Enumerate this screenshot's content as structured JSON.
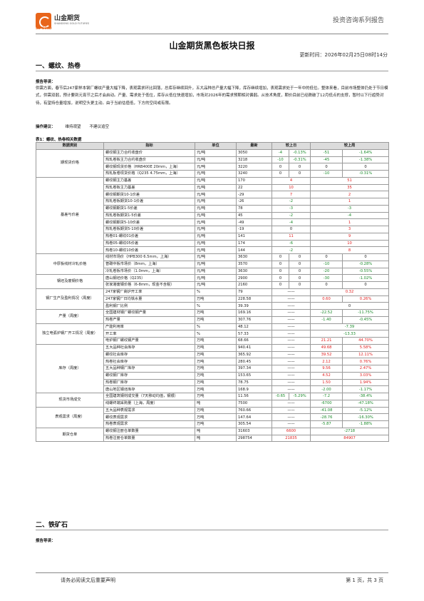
{
  "header": {
    "logo_cn": "山金期货",
    "logo_en": "SHANDONG GOLD FUTURES",
    "logo_sub": "SD GOLD",
    "right_text": "投资咨询系列报告",
    "logo_color": "#e8651b"
  },
  "title": "山金期货黑色板块日报",
  "update_time": "更新时间：2026年02月25日08时14分",
  "section1": {
    "heading": "一、螺纹、热卷",
    "guide_label": "报告导读：",
    "paragraph": "供需方面，春节后247家样本钢厂螺纹产量大幅下降，表观需求环比回落，总库存继续回升，五大品种总产量大幅下降，库存继续增加，表观需求处于一年中的低位。整体来看，目前市场整体仍处于节日模式，供需双弱，预计要到元宵节之后才会启动。产量、需求处于低位，库存从低位快速增加，市场对2026年的需求预期相对偏弱。从技术角度，期价目前已经跌破了12月低点的支撑，暂时以下行趋势对待，有望持仓量增加，说明空头更主动。由于当前估值低，下方的空间或有限。",
    "advice_label": "操作建议：",
    "advice_value": "维持观望",
    "advice_note": "不建议追空"
  },
  "table": {
    "caption": "表1：螺纹、热卷相关数据",
    "headers": [
      "数据类别",
      "指标",
      "单位",
      "最新",
      "较上日",
      "较上周"
    ],
    "rows": [
      {
        "cat": "期现货价格",
        "span": 4,
        "ind": "螺纹钢主力合约收盘价",
        "unit": "元/吨",
        "latest": "3050",
        "d1": "-4",
        "d1p": "-0.13%",
        "w1": "-51",
        "w1p": "-1.64%",
        "split": true,
        "c1": "grn",
        "c2": "grn"
      },
      {
        "ind": "热轧卷板主力合约收盘价",
        "unit": "元/吨",
        "latest": "3218",
        "d1": "-10",
        "d1p": "-0.31%",
        "w1": "-45",
        "w1p": "-1.38%",
        "split": true,
        "c1": "grn",
        "c2": "grn"
      },
      {
        "ind": "螺纹钢现货价格（HRB400E 20mm，上海）",
        "unit": "元/吨",
        "latest": "3220",
        "d1": "0",
        "d1p": "0",
        "w1": "0",
        "w1p": "0",
        "split": true,
        "c1": "",
        "c2": ""
      },
      {
        "ind": "热轧板卷现货价格（Q235 4.75mm，上海）",
        "unit": "元/吨",
        "latest": "3240",
        "d1": "0",
        "d1p": "0",
        "w1": "-10",
        "w1p": "-0.31%",
        "split": true,
        "c1": "",
        "c2": "grn"
      },
      {
        "cat": "基差与价差",
        "span": 11,
        "ind": "螺纹钢主力基差",
        "unit": "元/吨",
        "latest": "170",
        "d1": "4",
        "w1": "51",
        "split": false,
        "c1": "red",
        "c2": "red"
      },
      {
        "ind": "热轧卷板主力基差",
        "unit": "元/吨",
        "latest": "22",
        "d1": "10",
        "w1": "35",
        "split": false,
        "c1": "red",
        "c2": "red"
      },
      {
        "ind": "螺纹钢期货10-1价差",
        "unit": "元/吨",
        "latest": "-29",
        "d1": "7",
        "w1": "2",
        "split": false,
        "c1": "red",
        "c2": "red"
      },
      {
        "ind": "热轧卷板期货10-1价差",
        "unit": "元/吨",
        "latest": "-26",
        "d1": "-2",
        "w1": "1",
        "split": false,
        "c1": "grn",
        "c2": "red"
      },
      {
        "ind": "螺纹钢期货1-5价差",
        "unit": "元/吨",
        "latest": "78",
        "d1": "-3",
        "w1": "-3",
        "split": false,
        "c1": "grn",
        "c2": "grn"
      },
      {
        "ind": "热轧卷板期货1-5价差",
        "unit": "元/吨",
        "latest": "45",
        "d1": "-2",
        "w1": "-4",
        "split": false,
        "c1": "grn",
        "c2": "grn"
      },
      {
        "ind": "螺纹钢期货5-10价差",
        "unit": "元/吨",
        "latest": "-49",
        "d1": "-4",
        "w1": "1",
        "split": false,
        "c1": "grn",
        "c2": "red"
      },
      {
        "ind": "热轧卷板期货5-10价差",
        "unit": "元/吨",
        "latest": "-19",
        "d1": "0",
        "w1": "3",
        "split": false,
        "c1": "",
        "c2": "red"
      },
      {
        "ind": "热卷01-螺纹01价差",
        "unit": "元/吨",
        "latest": "141",
        "d1": "11",
        "w1": "9",
        "split": false,
        "c1": "red",
        "c2": "red"
      },
      {
        "ind": "热卷05-螺纹05价差",
        "unit": "元/吨",
        "latest": "174",
        "d1": "-6",
        "w1": "10",
        "split": false,
        "c1": "grn",
        "c2": "red"
      },
      {
        "ind": "热卷10-螺纹10价差",
        "unit": "元/吨",
        "latest": "144",
        "d1": "-2",
        "w1": "8",
        "split": false,
        "c1": "grn",
        "c2": "red"
      },
      {
        "cat": "中厚板线材冷轧价格",
        "span": 3,
        "ind": "线材市场价（HPB300 6.5mm，上海）",
        "unit": "元/吨",
        "latest": "3630",
        "d1": "0",
        "d1p": "0",
        "w1": "0",
        "w1p": "0",
        "split": true,
        "c1": "",
        "c2": ""
      },
      {
        "ind": "普碳中板市场价（8mm，上海）",
        "unit": "元/吨",
        "latest": "3570",
        "d1": "0",
        "d1p": "0",
        "w1": "-10",
        "w1p": "-0.28%",
        "split": true,
        "c1": "",
        "c2": "grn"
      },
      {
        "ind": "冷轧卷板市场价（1.0mm，上海）",
        "unit": "元/吨",
        "latest": "3630",
        "d1": "0",
        "d1p": "0",
        "w1": "-20",
        "w1p": "-0.55%",
        "split": true,
        "c1": "",
        "c2": "grn"
      },
      {
        "cat": "钢坯及废钢价格",
        "span": 2,
        "ind": "唐山钢坯价格（Q235）",
        "unit": "元/吨",
        "latest": "2900",
        "d1": "0",
        "d1p": "0",
        "w1": "-30",
        "w1p": "-1.02%",
        "split": true,
        "c1": "",
        "c2": "grn"
      },
      {
        "ind": "张家港废钢价格（6-8mm，现金不含税）",
        "unit": "元/吨",
        "latest": "2160",
        "d1": "0",
        "d1p": "0",
        "w1": "0",
        "w1p": "0",
        "split": true,
        "c1": "",
        "c2": ""
      },
      {
        "cat": "钢厂生产及盈利情况（周度）",
        "span": 3,
        "ind": "247家钢厂高炉开工率",
        "unit": "%",
        "latest": "79",
        "d1": "——",
        "w1": "0.32",
        "split": false,
        "c1": "",
        "c2": "red"
      },
      {
        "ind": "247家钢厂日均铁水量",
        "unit": "万吨",
        "latest": "228.58",
        "d1": "——",
        "w1": "0.60",
        "w1p": "0.26%",
        "split": "w",
        "c1": "",
        "c2": "red"
      },
      {
        "ind": "盈利钢厂比例",
        "unit": "%",
        "latest": "39.39",
        "d1": "——",
        "w1": "0",
        "split": false,
        "c1": "",
        "c2": ""
      },
      {
        "cat": "产量（周度）",
        "span": 2,
        "ind": "全国建材钢厂螺纹钢产量",
        "unit": "万吨",
        "latest": "169.16",
        "d1": "——",
        "w1": "-22.52",
        "w1p": "-11.75%",
        "split": "w",
        "c1": "",
        "c2": "grn"
      },
      {
        "ind": "热卷产量",
        "unit": "万吨",
        "latest": "307.76",
        "d1": "——",
        "w1": "-1.40",
        "w1p": "-0.45%",
        "split": "w",
        "c1": "",
        "c2": "grn"
      },
      {
        "cat": "独立电弧炉钢厂开工情况（周度）",
        "span": 3,
        "ind": "产能利用率",
        "unit": "%",
        "latest": "48.12",
        "d1": "——",
        "w1": "-7.39",
        "split": false,
        "c1": "",
        "c2": "grn"
      },
      {
        "ind": "开工率",
        "unit": "%",
        "latest": "57.33",
        "d1": "——",
        "w1": "-13.33",
        "split": false,
        "c1": "",
        "c2": "grn"
      },
      {
        "ind": "电炉钢厂螺纹钢产量",
        "unit": "万吨",
        "latest": "68.66",
        "d1": "——",
        "w1": "21.21",
        "w1p": "44.70%",
        "split": "w",
        "c1": "",
        "c2": "red"
      },
      {
        "cat": "库存（周度）",
        "span": 7,
        "ind": "五大品种社会库存",
        "unit": "万吨",
        "latest": "940.41",
        "d1": "——",
        "w1": "49.68",
        "w1p": "5.58%",
        "split": "w",
        "c1": "",
        "c2": "red"
      },
      {
        "ind": "螺纹社会库存",
        "unit": "万吨",
        "latest": "365.92",
        "d1": "——",
        "w1": "39.52",
        "w1p": "12.11%",
        "split": "w",
        "c1": "",
        "c2": "red"
      },
      {
        "ind": "热卷社会库存",
        "unit": "万吨",
        "latest": "280.45",
        "d1": "——",
        "w1": "2.12",
        "w1p": "0.76%",
        "split": "w",
        "c1": "",
        "c2": "red"
      },
      {
        "ind": "五大品种钢厂库存",
        "unit": "万吨",
        "latest": "397.34",
        "d1": "——",
        "w1": "9.56",
        "w1p": "2.47%",
        "split": "w",
        "c1": "",
        "c2": "red"
      },
      {
        "ind": "螺纹钢厂库存",
        "unit": "万吨",
        "latest": "153.65",
        "d1": "——",
        "w1": "4.52",
        "w1p": "3.03%",
        "split": "w",
        "c1": "",
        "c2": "red"
      },
      {
        "ind": "热卷钢厂库存",
        "unit": "万吨",
        "latest": "78.75",
        "d1": "——",
        "w1": "1.50",
        "w1p": "1.94%",
        "split": "w",
        "c1": "",
        "c2": "red"
      },
      {
        "ind": "唐山地区钢坯库存",
        "unit": "万吨",
        "latest": "168.9",
        "d1": "——",
        "w1": "-2.00",
        "w1p": "-1.17%",
        "split": "w",
        "c1": "",
        "c2": "grn"
      },
      {
        "cat": "现货市场成交",
        "span": 2,
        "ind": "全国建筑钢材成交量（7天移动均值，钢银）",
        "unit": "万吨",
        "latest": "11.56",
        "d1": "-0.65",
        "d1p": "-5.29%",
        "w1": "-7.2",
        "w1p": "-38.4%",
        "split": true,
        "c1": "grn",
        "c2": "grn"
      },
      {
        "ind": "线螺终端采购量（上海，周度）",
        "unit": "吨",
        "latest": "7500",
        "d1": "——",
        "w1": "-6700",
        "w1p": "-47.18%",
        "split": "w",
        "c1": "",
        "c2": "grn"
      },
      {
        "cat": "表观需求（周度）",
        "span": 3,
        "ind": "五大品种表观需求",
        "unit": "万吨",
        "latest": "760.66",
        "d1": "——",
        "w1": "-41.08",
        "w1p": "-5.12%",
        "split": "w",
        "c1": "",
        "c2": "grn"
      },
      {
        "ind": "螺纹表观需求",
        "unit": "万吨",
        "latest": "147.64",
        "d1": "——",
        "w1": "-28.76",
        "w1p": "-16.30%",
        "split": "w",
        "c1": "",
        "c2": "grn"
      },
      {
        "ind": "热卷表观需求",
        "unit": "万吨",
        "latest": "305.54",
        "d1": "——",
        "w1": "-5.87",
        "w1p": "-1.88%",
        "split": "w",
        "c1": "",
        "c2": "grn"
      },
      {
        "cat": "期货仓单",
        "span": 2,
        "ind": "螺纹钢注册仓单数量",
        "unit": "吨",
        "latest": "31603",
        "d1": "6600",
        "w1": "-2718",
        "split": false,
        "c1": "red",
        "c2": "grn"
      },
      {
        "ind": "热卷注册仓单数量",
        "unit": "吨",
        "latest": "298754",
        "d1": "21835",
        "w1": "84907",
        "split": false,
        "c1": "red",
        "c2": "red"
      }
    ]
  },
  "section2": {
    "heading": "二、铁矿石",
    "guide_label": "报告导读："
  },
  "footer": {
    "left": "请务必阅读文后重要声明",
    "right": "第 1 页，共 3 页"
  }
}
